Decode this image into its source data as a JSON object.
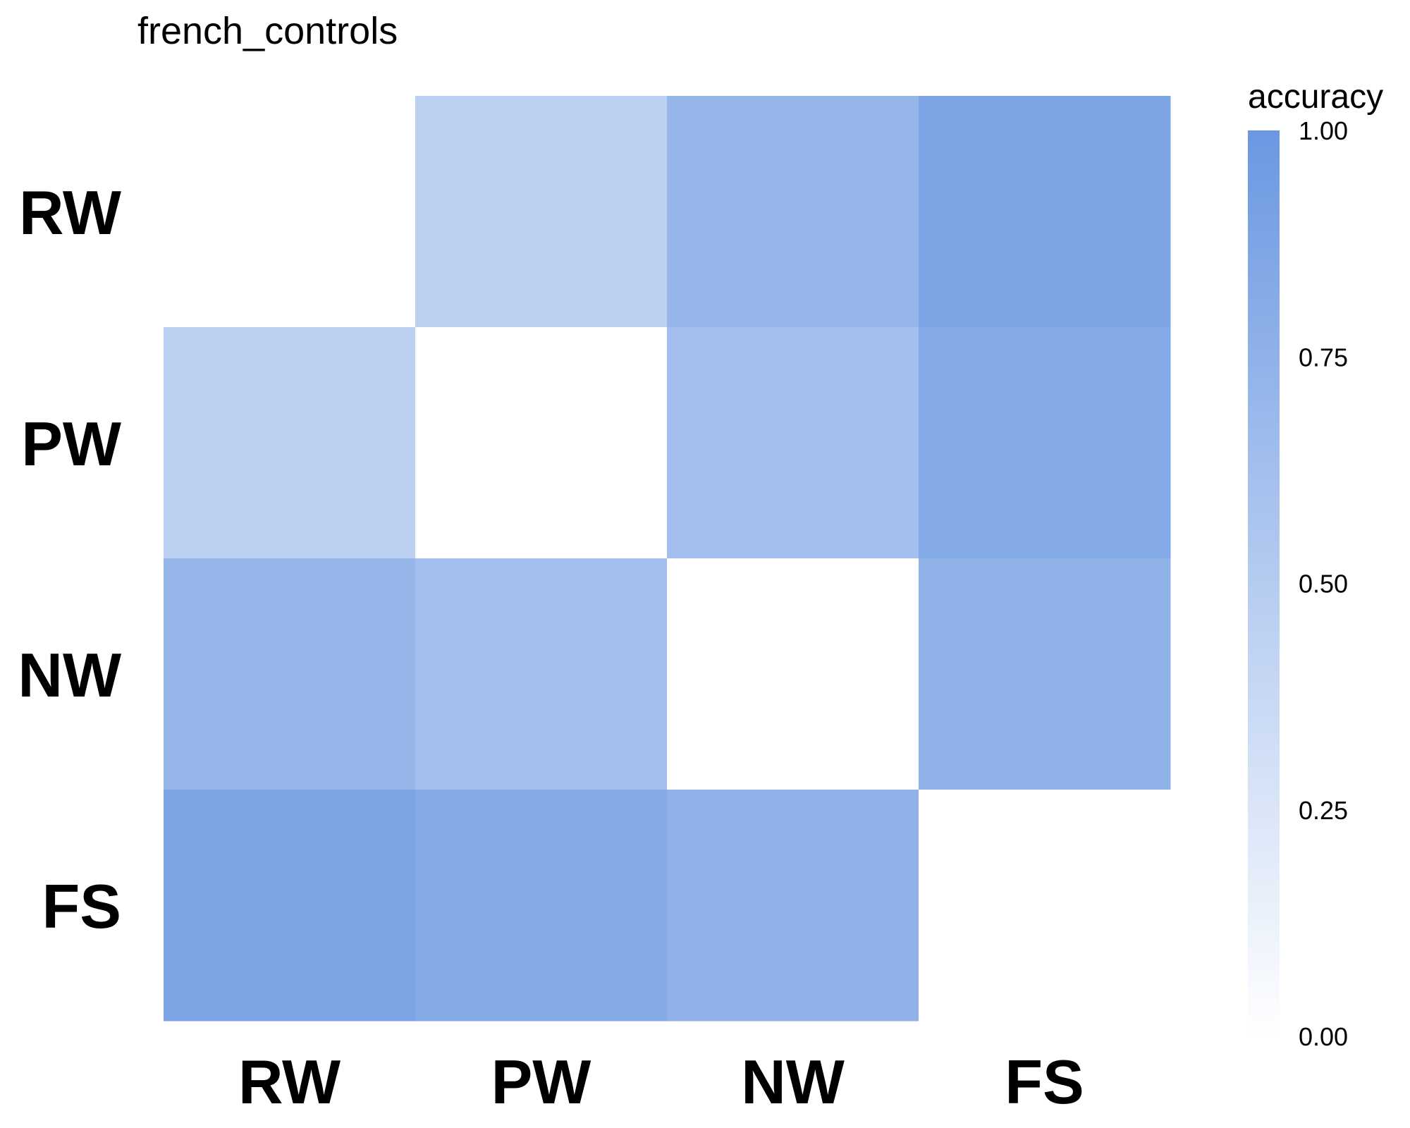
{
  "chart_data": {
    "type": "heatmap",
    "title": "french_controls",
    "rows": [
      "RW",
      "PW",
      "NW",
      "FS"
    ],
    "columns": [
      "RW",
      "PW",
      "NW",
      "FS"
    ],
    "values": [
      [
        null,
        0.45,
        0.71,
        0.88
      ],
      [
        0.45,
        null,
        0.62,
        0.83
      ],
      [
        0.71,
        0.62,
        null,
        0.75
      ],
      [
        0.88,
        0.83,
        0.75,
        null
      ]
    ],
    "legend": {
      "title": "accuracy",
      "ticks": [
        "1.00",
        "0.75",
        "0.50",
        "0.25",
        "0.00"
      ],
      "tick_values": [
        1.0,
        0.75,
        0.5,
        0.25,
        0.0
      ],
      "range": [
        0,
        1
      ],
      "low_color": "#ffffff",
      "high_color": "#6b98e2",
      "placement": "right"
    },
    "diagonal_color": "#ffffff",
    "grid": false
  }
}
